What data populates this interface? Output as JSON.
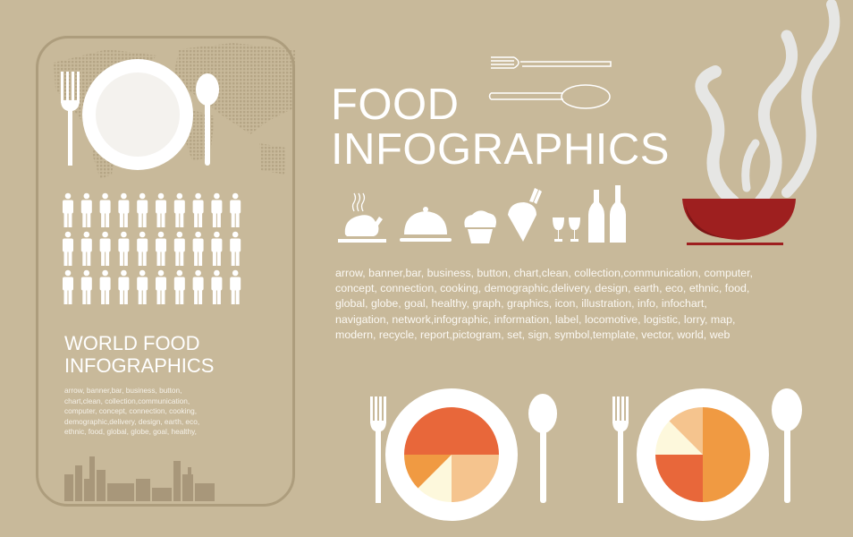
{
  "title": {
    "line1": "FOOD",
    "line2": "INFOGRAPHICS"
  },
  "keywords": [
    "arrow, banner,bar, business, button, chart,clean, collection,communication, computer,",
    "concept, connection, cooking, demographic,delivery, design, earth, eco, ethnic, food,",
    "global, globe, goal, healthy,  graph, graphics, icon, illustration, info, infochart,",
    "navigation, network,infographic, information, label, locomotive, logistic, lorry, map,",
    "modern, recycle, report,pictogram,  set, sign, symbol,template, vector, world, web"
  ],
  "panel": {
    "title_line1": "WORLD FOOD",
    "title_line2": "INFOGRAPHICS",
    "keywords": [
      "arrow, banner,bar, business, button,",
      "chart,clean, collection,communication,",
      "computer, concept, connection, cooking,",
      "demographic,delivery, design, earth, eco,",
      "ethnic, food, global, globe, goal, healthy,"
    ],
    "people_rows": 3,
    "people_cols": 10
  },
  "icons": [
    "roast-chicken-icon",
    "cloche-icon",
    "muffin-icon",
    "ice-cream-icon",
    "wine-glasses-icon",
    "bottles-icon",
    "steaming-bowl-icon",
    "fork-icon",
    "spoon-icon",
    "plate-icon",
    "world-map-icon",
    "city-skyline-icon"
  ],
  "colors": {
    "background": "#c8b99a",
    "bowl": "#9e1f1f",
    "pie_red": "#e8673a",
    "pie_orange": "#f09a42",
    "pie_peach": "#f5c48e",
    "pie_cream": "#fdf8dc"
  },
  "plates": [
    {
      "slices": [
        {
          "fraction": 0.5,
          "color": "#e8673a"
        },
        {
          "fraction": 0.25,
          "color": "#f5c48e"
        },
        {
          "fraction": 0.125,
          "color": "#fdf8dc"
        },
        {
          "fraction": 0.125,
          "color": "#f09a42"
        }
      ],
      "start_deg": 270
    },
    {
      "slices": [
        {
          "fraction": 0.5,
          "color": "#f09a42"
        },
        {
          "fraction": 0.25,
          "color": "#e8673a"
        },
        {
          "fraction": 0.125,
          "color": "#fdf8dc"
        },
        {
          "fraction": 0.125,
          "color": "#f5c48e"
        }
      ],
      "start_deg": 0
    }
  ]
}
